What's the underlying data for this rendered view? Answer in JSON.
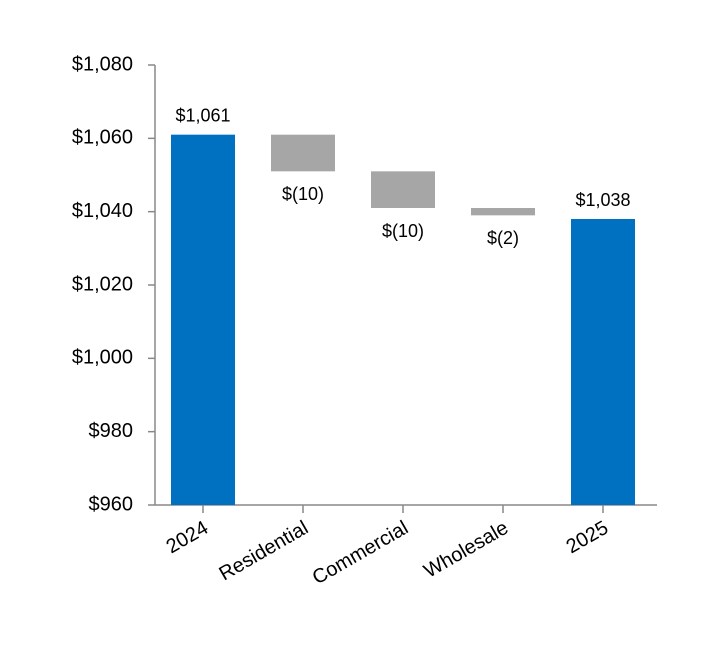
{
  "chart_data": {
    "type": "waterfall",
    "categories": [
      "2024",
      "Residential",
      "Commercial",
      "Wholesale",
      "2025"
    ],
    "values": [
      1061,
      -10,
      -10,
      -2,
      1038
    ],
    "value_labels": [
      "$1,061",
      "$(10)",
      "$(10)",
      "$(2)",
      "$1,038"
    ],
    "total_color": "#0070c0",
    "change_color": "#a6a6a6",
    "ylim": [
      960,
      1080
    ],
    "yticks": [
      {
        "value": 960,
        "label": "$960"
      },
      {
        "value": 980,
        "label": "$980"
      },
      {
        "value": 1000,
        "label": "$1,000"
      },
      {
        "value": 1020,
        "label": "$1,020"
      },
      {
        "value": 1040,
        "label": "$1,040"
      },
      {
        "value": 1060,
        "label": "$1,060"
      },
      {
        "value": 1080,
        "label": "$1,080"
      }
    ]
  }
}
